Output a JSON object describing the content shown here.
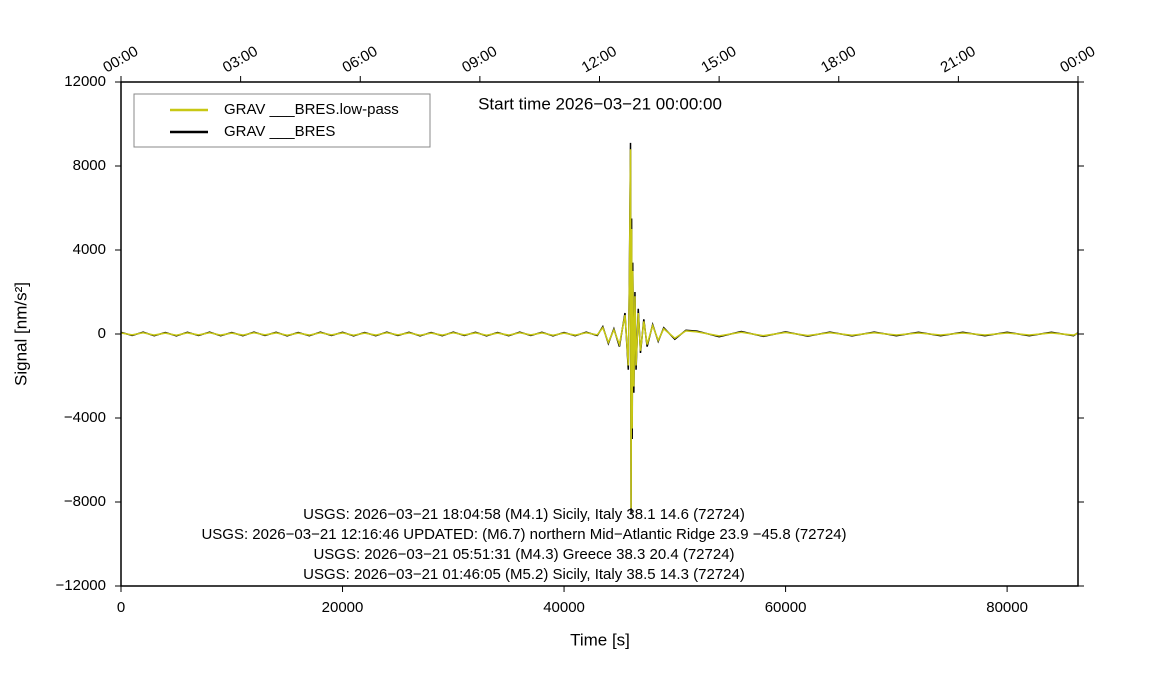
{
  "chart_data": {
    "type": "line",
    "title": "Start time 2026−03−21 00:00:00",
    "xlabel": "Time [s]",
    "ylabel": "Signal [nm/s²]",
    "annotations": [
      "USGS: 2026−03−21 18:04:58 (M4.1) Sicily, Italy 38.1 14.6 (72724)",
      "USGS: 2026−03−21 12:16:46 UPDATED: (M6.7) northern Mid−Atlantic Ridge 23.9 −45.8 (72724)",
      "USGS: 2026−03−21 05:51:31 (M4.3) Greece 38.3 20.4 (72724)",
      "USGS: 2026−03−21 01:46:05 (M5.2) Sicily, Italy 38.5 14.3 (72724)"
    ],
    "legend": "upper left",
    "xlim": [
      0,
      86400
    ],
    "xticks": [
      0,
      20000,
      40000,
      60000,
      80000
    ],
    "x2ticks": [
      {
        "value": 0,
        "label": "00:00"
      },
      {
        "value": 10800,
        "label": "03:00"
      },
      {
        "value": 21600,
        "label": "06:00"
      },
      {
        "value": 32400,
        "label": "09:00"
      },
      {
        "value": 43200,
        "label": "12:00"
      },
      {
        "value": 54000,
        "label": "15:00"
      },
      {
        "value": 64800,
        "label": "18:00"
      },
      {
        "value": 75600,
        "label": "21:00"
      },
      {
        "value": 86400,
        "label": "00:00"
      }
    ],
    "ylim": [
      -12000,
      12000
    ],
    "yticks": [
      {
        "value": -12000,
        "label": "−12000"
      },
      {
        "value": -8000,
        "label": "−8000"
      },
      {
        "value": -4000,
        "label": "−4000"
      },
      0,
      4000,
      8000,
      12000
    ],
    "x": [
      0,
      1000,
      2000,
      3000,
      4000,
      5000,
      6000,
      7000,
      8000,
      9000,
      10000,
      11000,
      12000,
      13000,
      14000,
      15000,
      16000,
      17000,
      18000,
      19000,
      20000,
      21000,
      22000,
      23000,
      24000,
      25000,
      26000,
      27000,
      28000,
      29000,
      30000,
      31000,
      32000,
      33000,
      34000,
      35000,
      36000,
      37000,
      38000,
      39000,
      40000,
      41000,
      42000,
      43000,
      43500,
      44000,
      44500,
      45000,
      45500,
      45800,
      45900,
      46000,
      46050,
      46100,
      46150,
      46200,
      46300,
      46400,
      46500,
      46700,
      46900,
      47200,
      47500,
      48000,
      48500,
      49000,
      50000,
      51000,
      52000,
      54000,
      56000,
      58000,
      60000,
      62000,
      64000,
      66000,
      68000,
      70000,
      72000,
      74000,
      76000,
      78000,
      80000,
      82000,
      84000,
      86000,
      86400
    ],
    "series": [
      {
        "name": "GRAV ___BRES.low-pass",
        "color": "#c8c814",
        "values": [
          50,
          -40,
          60,
          -50,
          40,
          -60,
          50,
          -40,
          60,
          -50,
          40,
          -50,
          60,
          -40,
          50,
          -60,
          40,
          -50,
          60,
          -40,
          50,
          -60,
          40,
          -50,
          60,
          -40,
          50,
          -60,
          40,
          -50,
          60,
          -40,
          50,
          -60,
          40,
          -50,
          60,
          -40,
          50,
          -60,
          40,
          -50,
          60,
          -40,
          300,
          -400,
          200,
          -500,
          900,
          -1500,
          2500,
          8800,
          -8300,
          5000,
          -4500,
          3000,
          -2500,
          1800,
          -1500,
          1000,
          -800,
          600,
          -500,
          400,
          -300,
          250,
          -200,
          150,
          100,
          -90,
          80,
          -80,
          70,
          -70,
          60,
          -60,
          60,
          -50,
          50,
          -50,
          50,
          -50,
          50,
          -50,
          50,
          -50,
          40
        ]
      },
      {
        "name": "GRAV ___BRES",
        "color": "#000000",
        "values": [
          80,
          -70,
          90,
          -80,
          70,
          -90,
          80,
          -70,
          90,
          -80,
          70,
          -80,
          90,
          -70,
          80,
          -90,
          70,
          -80,
          90,
          -70,
          80,
          -90,
          70,
          -80,
          90,
          -70,
          80,
          -90,
          70,
          -80,
          90,
          -70,
          80,
          -90,
          70,
          -80,
          90,
          -70,
          80,
          -90,
          70,
          -80,
          90,
          -70,
          350,
          -450,
          250,
          -600,
          1000,
          -1700,
          2800,
          9100,
          -8600,
          5500,
          -5000,
          3400,
          -2800,
          2000,
          -1700,
          1200,
          -900,
          700,
          -600,
          450,
          -350,
          300,
          -250,
          180,
          140,
          -130,
          120,
          -110,
          100,
          -100,
          90,
          -90,
          90,
          -80,
          80,
          -80,
          80,
          -80,
          80,
          -80,
          80,
          -80,
          60
        ]
      }
    ]
  }
}
